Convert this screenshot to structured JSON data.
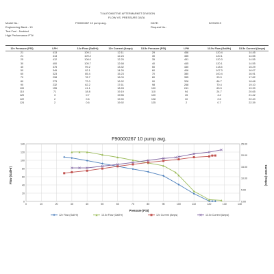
{
  "header": {
    "company": "TI AUTOMOTIVE AFTERMARKET DIVISION",
    "subtitle": "FLOW VS. PRESSURE DATA",
    "model_label": "Model No.:",
    "model_value": "F90000267 10 pump avg.",
    "date_label": "DATE:",
    "date_value": "5/23/2019",
    "engineering_label": "Engineering Bank - 19",
    "request_label": "Request No.:",
    "fuel_label": "Test Fuel - Nodded",
    "performance_label": "High Performance PT#"
  },
  "table": {
    "headers": [
      "12v Pressure (PSI)",
      "LPH",
      "12v Flow (Gal/Hr)",
      "12v Current (Amps)",
      "13.5v Pressure (PSI)",
      "LPH",
      "13.5v Flow (Gal/Hr)",
      "13.5v Current (Amps)"
    ],
    "rows": [
      [
        "21",
        "413",
        "109.1",
        "12.11",
        "29",
        "456",
        "120.4",
        "14.45"
      ],
      [
        "21",
        "413",
        "109.2",
        "12.24",
        "30",
        "455",
        "120.1",
        "14.55"
      ],
      [
        "25",
        "412",
        "108.0",
        "12.25",
        "35",
        "451",
        "120.3",
        "14.55"
      ],
      [
        "30",
        "400",
        "105.7",
        "12.68",
        "40",
        "445",
        "120.1",
        "14.55"
      ],
      [
        "40",
        "375",
        "99.2",
        "13.32",
        "50",
        "430",
        "113.5",
        "15.29"
      ],
      [
        "50",
        "349",
        "92.1",
        "14.26",
        "60",
        "406",
        "107.3",
        "16.07"
      ],
      [
        "60",
        "323",
        "85.4",
        "15.23",
        "70",
        "380",
        "100.4",
        "16.91"
      ],
      [
        "70",
        "298",
        "78.7",
        "16.09",
        "80",
        "355",
        "93.5",
        "17.82"
      ],
      [
        "80",
        "273",
        "72.0",
        "16.92",
        "90",
        "328",
        "86.7",
        "18.68"
      ],
      [
        "90",
        "232",
        "62.2",
        "17.61",
        "98",
        "268",
        "70.4",
        "19.10"
      ],
      [
        "100",
        "155",
        "41.1",
        "18.28",
        "100",
        "241",
        "63.5",
        "19.39"
      ],
      [
        "110",
        "71",
        "18.8",
        "19.19",
        "110",
        "94",
        "24.7",
        "20.65"
      ],
      [
        "120",
        "3",
        "0.7",
        "19.56",
        "120",
        "15",
        "4.2",
        "21.42"
      ],
      [
        "122",
        "2",
        "0.6",
        "19.90",
        "128",
        "10",
        "2.6",
        "22.40"
      ],
      [
        "124",
        "2",
        "0.6",
        "19.92",
        "125",
        "2",
        "0.7",
        "22.39"
      ]
    ]
  },
  "chart_data": {
    "type": "line",
    "title": "F90000267 10 pump avg.",
    "xlabel": "Pressure (PSI)",
    "ylabel": "Flow (Gal/Hr)",
    "y2label": "Current (Amps)",
    "xlim": [
      0,
      140
    ],
    "ylim": [
      0,
      140
    ],
    "y2lim": [
      0,
      25
    ],
    "xticks": [
      0,
      10,
      20,
      30,
      40,
      50,
      60,
      70,
      80,
      90,
      100,
      110,
      120,
      130,
      140
    ],
    "yticks": [
      0,
      20,
      40,
      60,
      80,
      100,
      120,
      140
    ],
    "y2ticks": [
      "0.00",
      "5.00",
      "10.00",
      "15.00",
      "20.00",
      "25.00"
    ],
    "grid": true,
    "legend_position": "bottom",
    "series": [
      {
        "name": "12v Flow (Gal/Hr)",
        "axis": "left",
        "color": "#4a7ebb",
        "marker": "diamond",
        "x": [
          25,
          30,
          40,
          50,
          60,
          70,
          80,
          90,
          100,
          110,
          120,
          122,
          124
        ],
        "y": [
          108.0,
          105.7,
          99.2,
          92.1,
          85.4,
          78.7,
          72.0,
          62.2,
          41.1,
          18.8,
          0.7,
          0.6,
          0.6
        ]
      },
      {
        "name": "13.5v Flow (Gal/Hr)",
        "axis": "left",
        "color": "#9bbb59",
        "marker": "triangle",
        "x": [
          30,
          35,
          40,
          50,
          60,
          70,
          80,
          90,
          98,
          100,
          110,
          120,
          128
        ],
        "y": [
          120.1,
          120.3,
          120.1,
          113.5,
          107.3,
          100.4,
          93.5,
          86.7,
          70.4,
          63.5,
          24.7,
          4.2,
          2.6
        ]
      },
      {
        "name": "12v Current (Amps)",
        "axis": "right",
        "color": "#c0504d",
        "marker": "square",
        "x": [
          25,
          30,
          40,
          50,
          60,
          70,
          80,
          90,
          100,
          110,
          120,
          122,
          124
        ],
        "y": [
          12.25,
          12.68,
          13.32,
          14.26,
          15.23,
          16.09,
          16.92,
          17.61,
          18.28,
          19.19,
          19.56,
          19.9,
          19.92
        ]
      },
      {
        "name": "13.5v Current (Amps)",
        "axis": "right",
        "color": "#8064a2",
        "marker": "cross",
        "x": [
          30,
          35,
          40,
          50,
          60,
          70,
          80,
          90,
          98,
          100,
          110,
          120,
          128
        ],
        "y": [
          14.55,
          14.55,
          14.55,
          15.29,
          16.07,
          16.91,
          17.82,
          18.68,
          19.1,
          19.39,
          20.65,
          21.42,
          22.4
        ]
      }
    ]
  }
}
